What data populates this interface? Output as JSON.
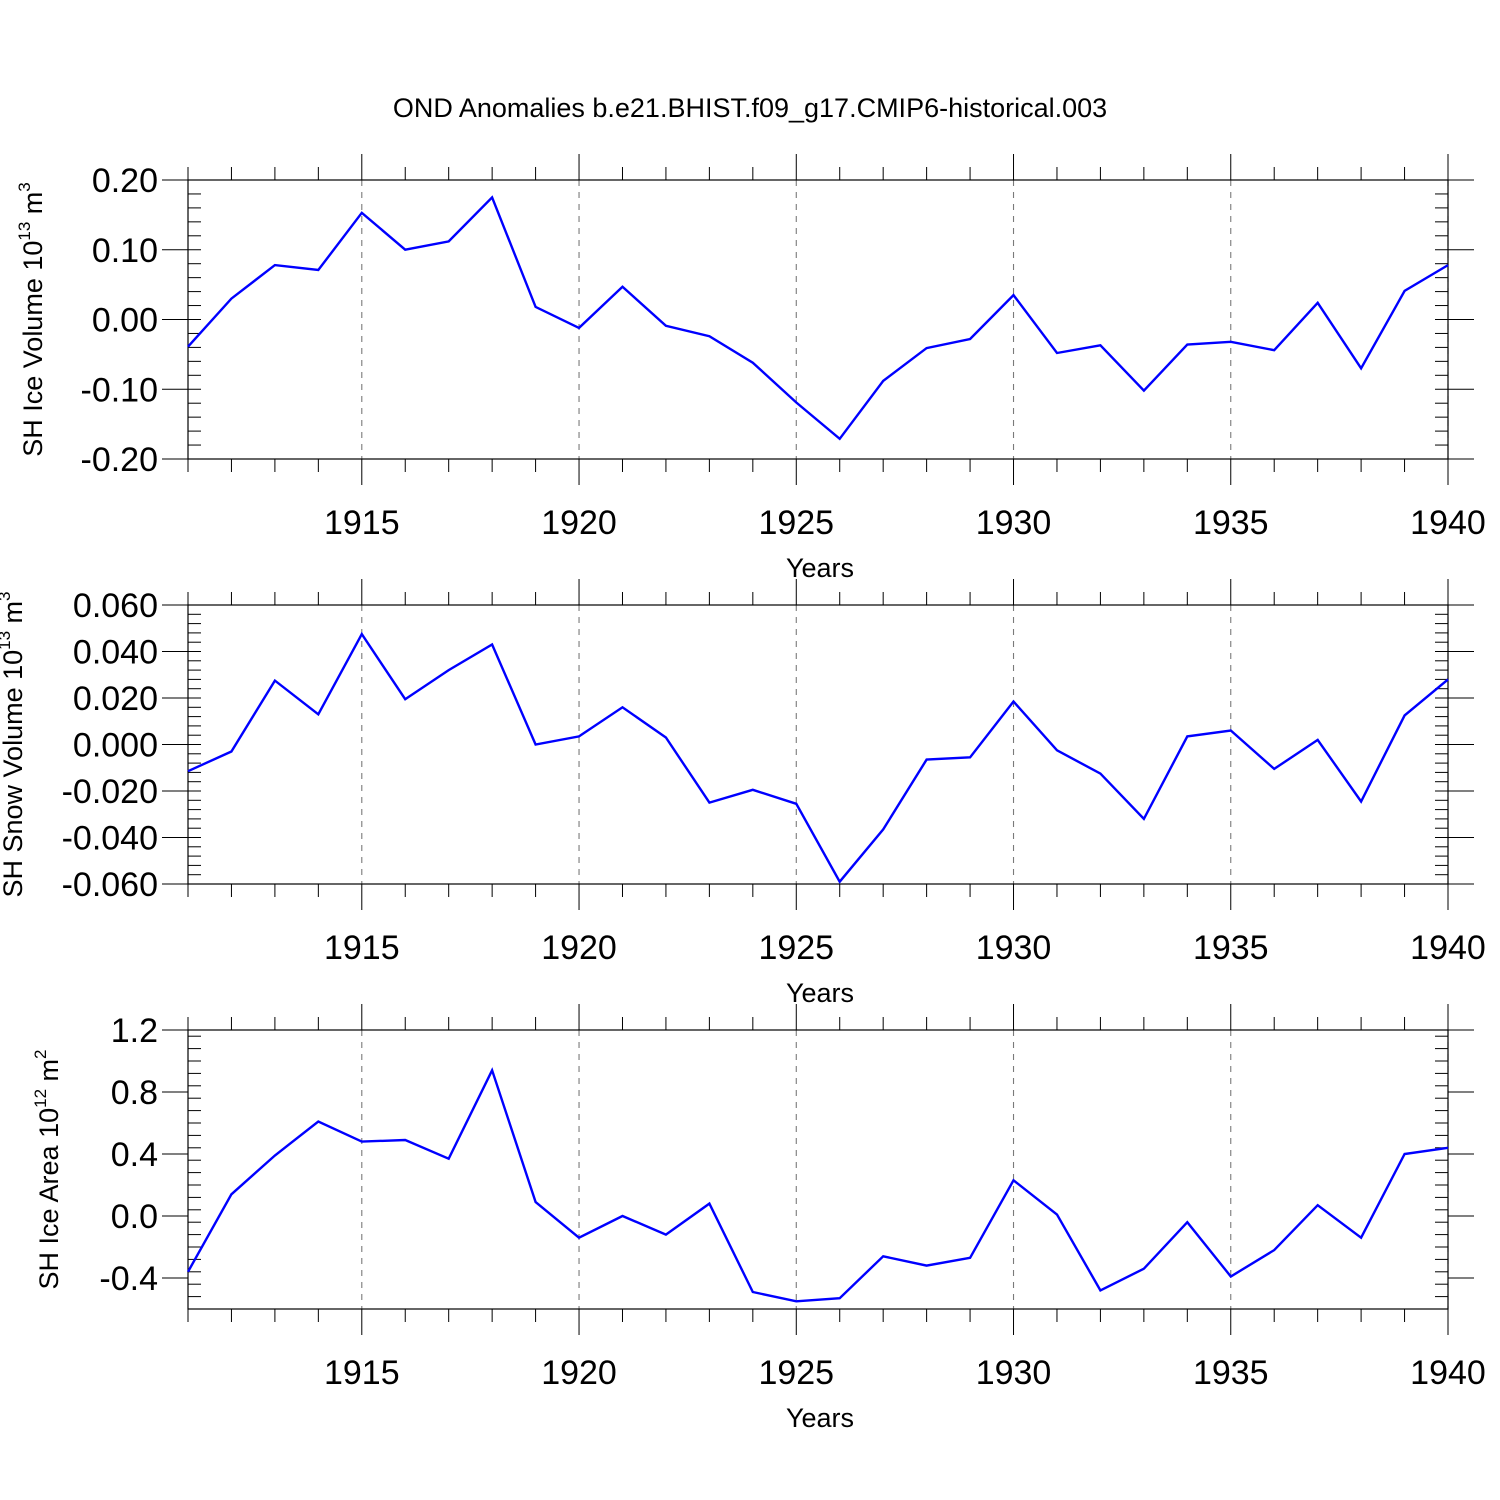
{
  "figure": {
    "title": "OND Anomalies b.e21.BHIST.f09_g17.CMIP6-historical.003"
  },
  "chart_data": [
    {
      "type": "line",
      "title": "OND Anomalies b.e21.BHIST.f09_g17.CMIP6-historical.003",
      "xlabel": "Years",
      "ylabel": {
        "text": "SH Ice Volume 10",
        "exp": "13",
        "unit": " m",
        "unit_exp": "3"
      },
      "xlim": [
        1911,
        1940
      ],
      "ylim": [
        -0.2,
        0.2
      ],
      "x_ticks": [
        "1915",
        "1920",
        "1925",
        "1930",
        "1935",
        "1940"
      ],
      "x_tick_values": [
        1915,
        1920,
        1925,
        1930,
        1935,
        1940
      ],
      "y_ticks": [
        "0.20",
        "0.10",
        "0.00",
        "-0.10",
        "-0.20"
      ],
      "y_tick_values": [
        0.2,
        0.1,
        0.0,
        -0.1,
        -0.2
      ],
      "line_color": "#0000ff",
      "x": [
        1911,
        1912,
        1913,
        1914,
        1915,
        1916,
        1917,
        1918,
        1919,
        1920,
        1921,
        1922,
        1923,
        1924,
        1925,
        1926,
        1927,
        1928,
        1929,
        1930,
        1931,
        1932,
        1933,
        1934,
        1935,
        1936,
        1937,
        1938,
        1939,
        1940
      ],
      "values": [
        -0.039,
        0.03,
        0.078,
        0.071,
        0.153,
        0.1,
        0.112,
        0.175,
        0.018,
        -0.012,
        0.047,
        -0.009,
        -0.024,
        -0.062,
        -0.119,
        -0.171,
        -0.088,
        -0.041,
        -0.028,
        0.035,
        -0.048,
        -0.037,
        -0.102,
        -0.036,
        -0.032,
        -0.044,
        0.024,
        -0.07,
        0.041,
        0.078
      ]
    },
    {
      "type": "line",
      "xlabel": "Years",
      "ylabel": {
        "text": "SH Snow Volume 10",
        "exp": "13",
        "unit": " m",
        "unit_exp": "3"
      },
      "xlim": [
        1911,
        1940
      ],
      "ylim": [
        -0.06,
        0.06
      ],
      "x_ticks": [
        "1915",
        "1920",
        "1925",
        "1930",
        "1935",
        "1940"
      ],
      "x_tick_values": [
        1915,
        1920,
        1925,
        1930,
        1935,
        1940
      ],
      "y_ticks": [
        "0.060",
        "0.040",
        "0.020",
        "0.000",
        "-0.020",
        "-0.040",
        "-0.060"
      ],
      "y_tick_values": [
        0.06,
        0.04,
        0.02,
        0.0,
        -0.02,
        -0.04,
        -0.06
      ],
      "line_color": "#0000ff",
      "x": [
        1911,
        1912,
        1913,
        1914,
        1915,
        1916,
        1917,
        1918,
        1919,
        1920,
        1921,
        1922,
        1923,
        1924,
        1925,
        1926,
        1927,
        1928,
        1929,
        1930,
        1931,
        1932,
        1933,
        1934,
        1935,
        1936,
        1937,
        1938,
        1939,
        1940
      ],
      "values": [
        -0.0115,
        -0.003,
        0.0275,
        0.013,
        0.0475,
        0.0195,
        0.032,
        0.043,
        0.0,
        0.0035,
        0.016,
        0.003,
        -0.025,
        -0.0195,
        -0.0255,
        -0.059,
        -0.0365,
        -0.0065,
        -0.0055,
        0.0185,
        -0.0025,
        -0.0125,
        -0.032,
        0.0035,
        0.006,
        -0.0105,
        0.002,
        -0.0245,
        0.0125,
        0.028
      ]
    },
    {
      "type": "line",
      "xlabel": "Years",
      "ylabel": {
        "text": "SH Ice Area 10",
        "exp": "12",
        "unit": " m",
        "unit_exp": "2"
      },
      "xlim": [
        1911,
        1940
      ],
      "ylim": [
        -0.6,
        1.2
      ],
      "x_ticks": [
        "1915",
        "1920",
        "1925",
        "1930",
        "1935",
        "1940"
      ],
      "x_tick_values": [
        1915,
        1920,
        1925,
        1930,
        1935,
        1940
      ],
      "y_ticks": [
        "1.2",
        "0.8",
        "0.4",
        "0.0",
        "-0.4"
      ],
      "y_tick_values": [
        1.2,
        0.8,
        0.4,
        0.0,
        -0.4
      ],
      "line_color": "#0000ff",
      "x": [
        1911,
        1912,
        1913,
        1914,
        1915,
        1916,
        1917,
        1918,
        1919,
        1920,
        1921,
        1922,
        1923,
        1924,
        1925,
        1926,
        1927,
        1928,
        1929,
        1930,
        1931,
        1932,
        1933,
        1934,
        1935,
        1936,
        1937,
        1938,
        1939,
        1940
      ],
      "values": [
        -0.36,
        0.14,
        0.39,
        0.61,
        0.48,
        0.49,
        0.37,
        0.94,
        0.09,
        -0.14,
        0.0,
        -0.12,
        0.08,
        -0.49,
        -0.55,
        -0.53,
        -0.26,
        -0.32,
        -0.27,
        0.23,
        0.01,
        -0.48,
        -0.34,
        -0.04,
        -0.39,
        -0.22,
        0.07,
        -0.14,
        0.4,
        0.44
      ]
    }
  ]
}
